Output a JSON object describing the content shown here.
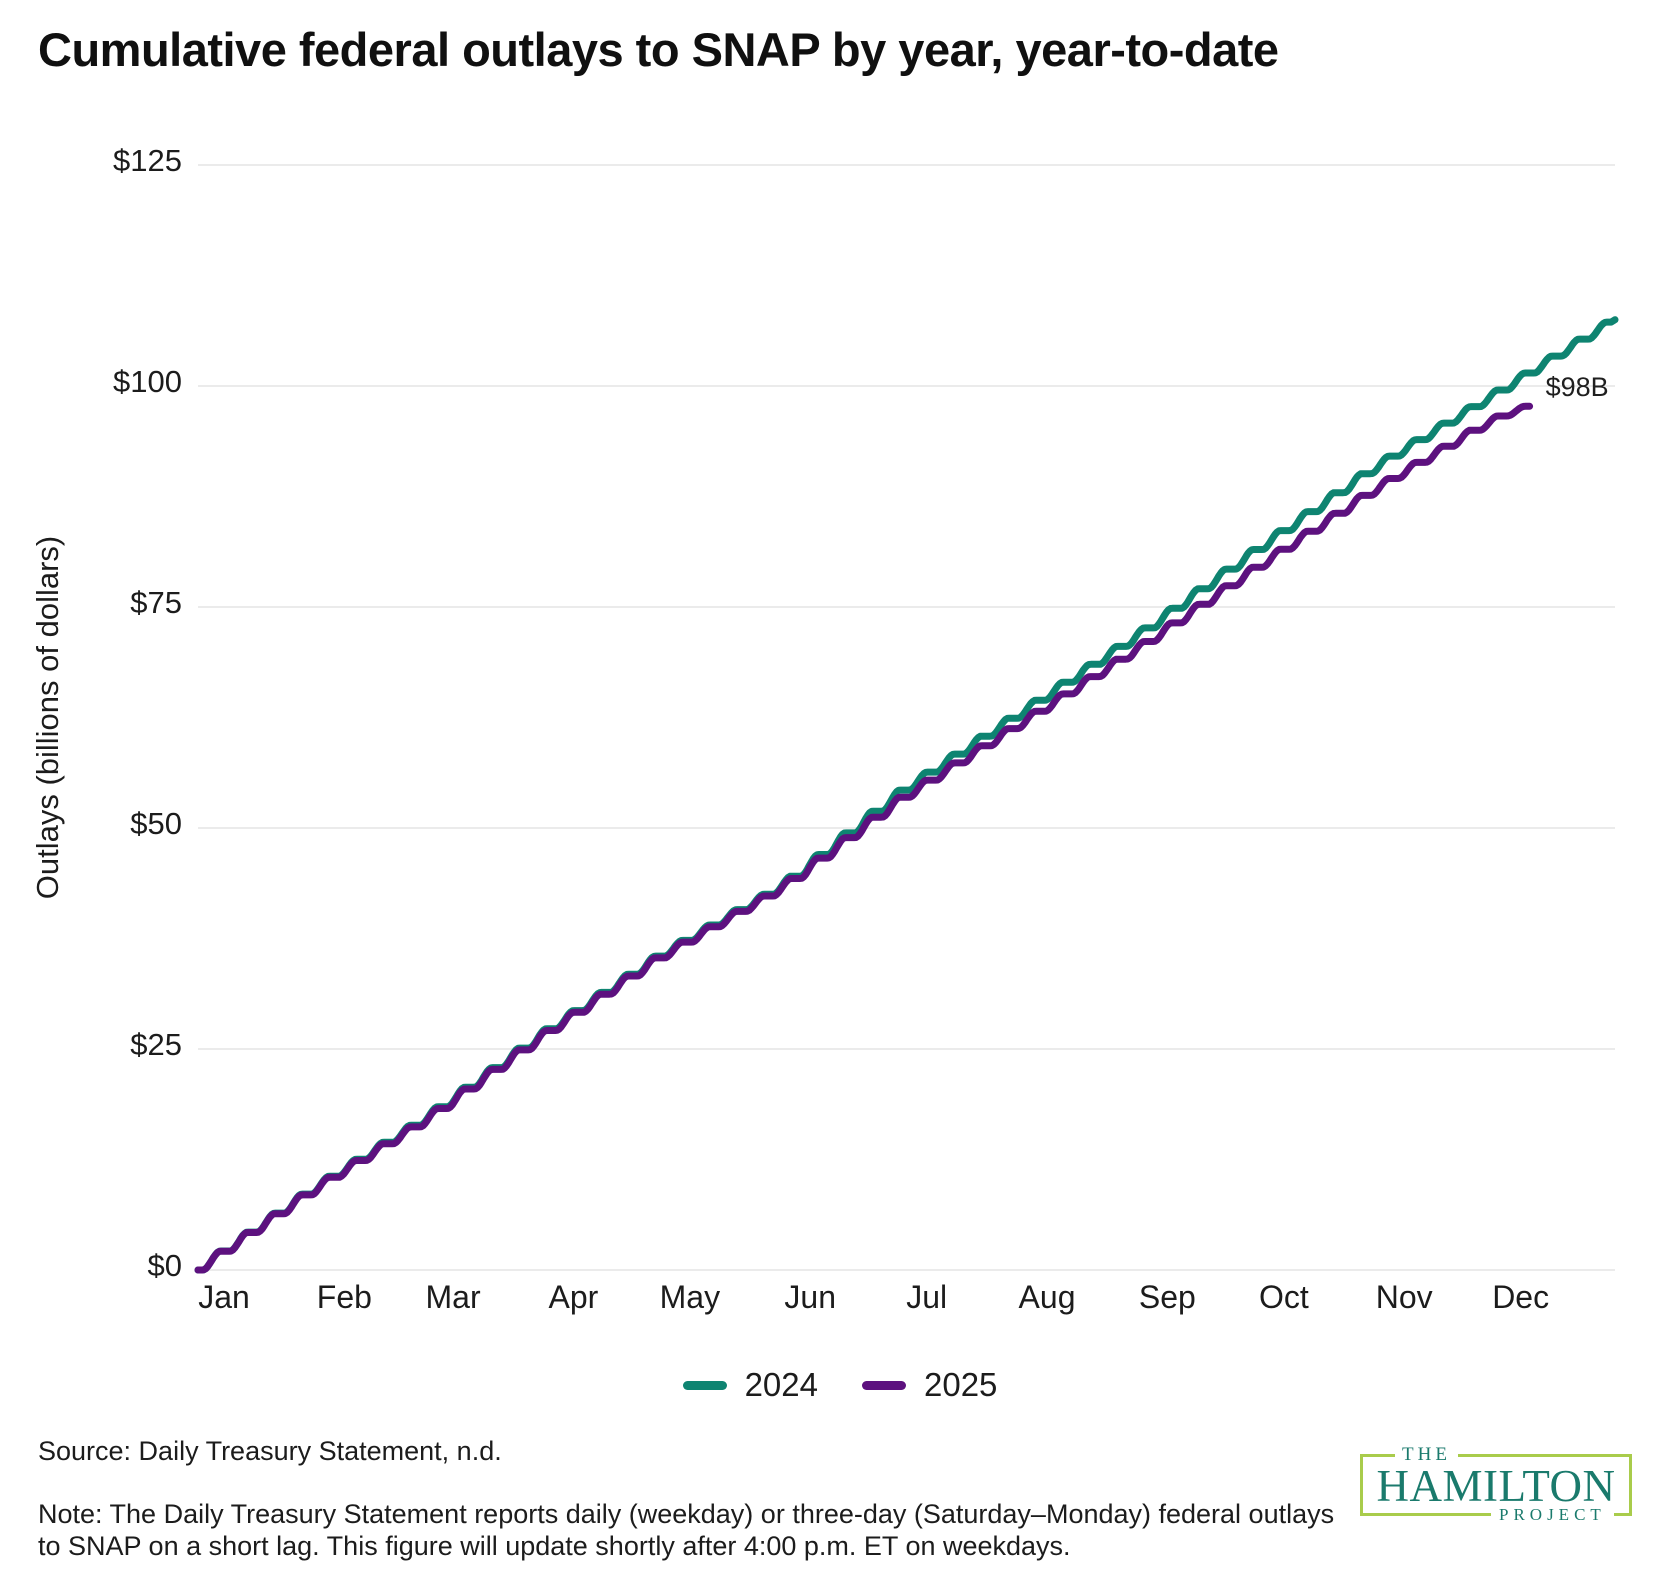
{
  "title": "Cumulative federal outlays to SNAP by year, year-to-date",
  "chart_data": {
    "type": "line",
    "title": "Cumulative federal outlays to SNAP by year, year-to-date",
    "xlabel": "",
    "ylabel": "Outlays (billions of dollars)",
    "ylim": [
      0,
      125
    ],
    "y_ticks": [
      {
        "value": 0,
        "label": "$0"
      },
      {
        "value": 25,
        "label": "$25"
      },
      {
        "value": 50,
        "label": "$50"
      },
      {
        "value": 75,
        "label": "$75"
      },
      {
        "value": 100,
        "label": "$100"
      },
      {
        "value": 125,
        "label": "$125"
      }
    ],
    "x_ticks": [
      {
        "day": 0,
        "label": "Jan"
      },
      {
        "day": 31,
        "label": "Feb"
      },
      {
        "day": 59,
        "label": "Mar"
      },
      {
        "day": 90,
        "label": "Apr"
      },
      {
        "day": 120,
        "label": "May"
      },
      {
        "day": 151,
        "label": "Jun"
      },
      {
        "day": 181,
        "label": "Jul"
      },
      {
        "day": 212,
        "label": "Aug"
      },
      {
        "day": 243,
        "label": "Sep"
      },
      {
        "day": 273,
        "label": "Oct"
      },
      {
        "day": 304,
        "label": "Nov"
      },
      {
        "day": 334,
        "label": "Dec"
      }
    ],
    "grid": "horizontal",
    "legend_position": "bottom-center",
    "x_unit": "day_of_year",
    "series": [
      {
        "name": "2024",
        "color": "#0e8471",
        "days": [
          0,
          31,
          59,
          90,
          120,
          151,
          181,
          212,
          243,
          273,
          304,
          334,
          365
        ],
        "values": [
          0,
          9.5,
          17.2,
          27.0,
          35.8,
          43.5,
          54.0,
          63.0,
          72.0,
          81.5,
          91.0,
          99.0,
          107.5
        ]
      },
      {
        "name": "2025",
        "color": "#5d117f",
        "days": [
          0,
          31,
          59,
          90,
          120,
          151,
          181,
          212,
          243,
          273,
          304,
          334,
          343
        ],
        "values": [
          0,
          9.4,
          17.0,
          26.8,
          35.6,
          43.3,
          53.2,
          61.8,
          70.5,
          79.5,
          88.5,
          96.3,
          97.7
        ],
        "end_label": "$98B"
      }
    ],
    "annotation": {
      "text": "$98B",
      "series": "2025",
      "value": 98
    }
  },
  "legend": {
    "items": [
      {
        "label": "2024",
        "color": "#0e8471"
      },
      {
        "label": "2025",
        "color": "#5d117f"
      }
    ]
  },
  "source": "Source: Daily Treasury Statement, n.d.",
  "note": "Note: The Daily Treasury Statement reports daily (weekday) or three-day (Saturday–Monday) federal outlays to SNAP on a short lag. This figure will update shortly after 4:00 p.m. ET on weekdays.",
  "logo": {
    "the": "THE",
    "main": "HAMILTON",
    "sub": "PROJECT",
    "text_color": "#1a7a6c",
    "border_color": "#a9cc4b"
  },
  "colors": {
    "gridline": "#ebebeb",
    "axis_text": "#1c1c1c",
    "annotation_text": "#1f1f1f"
  }
}
